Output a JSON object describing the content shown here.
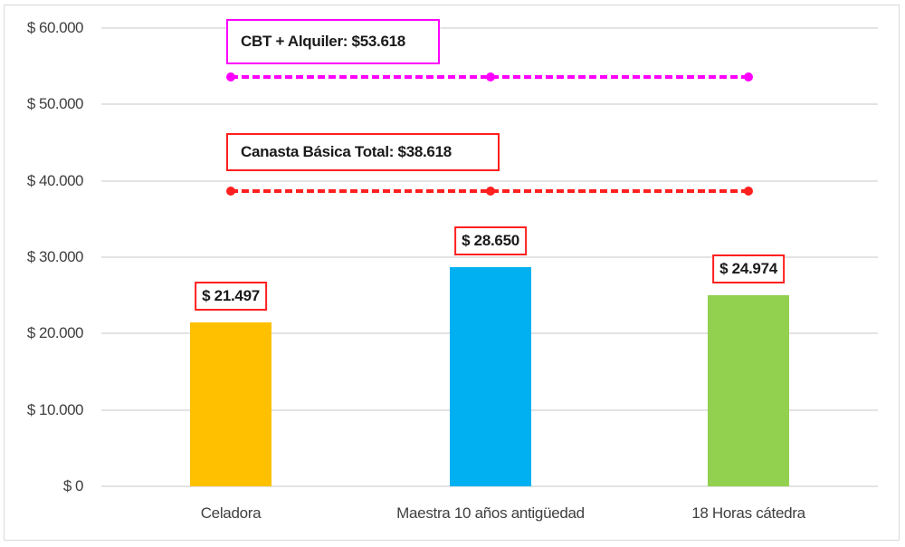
{
  "chart_data": {
    "type": "bar",
    "title": "",
    "xlabel": "",
    "ylabel": "",
    "ylim": [
      0,
      60000
    ],
    "grid": true,
    "legend": "none",
    "categories": [
      "Celadora",
      "Maestra 10 años antigüedad",
      "18 Horas cátedra"
    ],
    "values": [
      21497,
      28650,
      24974
    ],
    "value_labels": [
      "$ 21.497",
      "$ 28.650",
      "$ 24.974"
    ],
    "bar_colors": [
      "#ffc000",
      "#00b0f0",
      "#92d050"
    ],
    "y_ticks": [
      "$ 0",
      "$ 10.000",
      "$ 20.000",
      "$ 30.000",
      "$ 40.000",
      "$ 50.000",
      "$ 60.000"
    ],
    "y_tick_values": [
      0,
      10000,
      20000,
      30000,
      40000,
      50000,
      60000
    ],
    "reference_lines": [
      {
        "name": "Canasta Básica Total",
        "value": 38618,
        "label": "Canasta Básica Total: $38.618",
        "color": "#ff1f1f",
        "style": "dashed"
      },
      {
        "name": "CBT + Alquiler",
        "value": 53618,
        "label": "CBT + Alquiler: $53.618",
        "color": "#ff00ff",
        "style": "dashed"
      }
    ]
  }
}
